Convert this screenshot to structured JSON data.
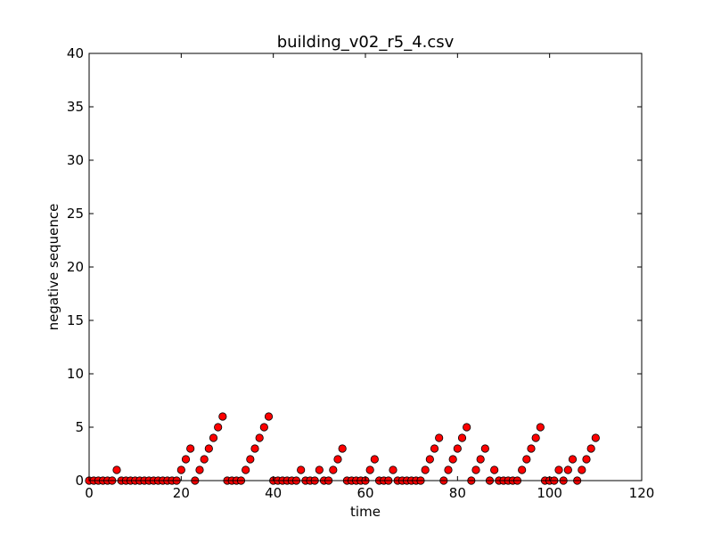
{
  "chart_data": {
    "type": "scatter",
    "title": "building_v02_r5_4.csv",
    "xlabel": "time",
    "ylabel": "negative sequence",
    "xlim": [
      0,
      120
    ],
    "ylim": [
      0,
      40
    ],
    "xticks": [
      0,
      20,
      40,
      60,
      80,
      100,
      120
    ],
    "yticks": [
      0,
      5,
      10,
      15,
      20,
      25,
      30,
      35,
      40
    ],
    "grid": false,
    "marker_color": "#ff0000",
    "marker_edge_color": "#000000",
    "series": [
      {
        "x": [
          0,
          1,
          2,
          3,
          4,
          5,
          6,
          7,
          8,
          9,
          10,
          11,
          12,
          13,
          14,
          15,
          16,
          17,
          18,
          19,
          20,
          21,
          22,
          23,
          24,
          25,
          26,
          27,
          28,
          29,
          30,
          31,
          32,
          33,
          34,
          35,
          36,
          37,
          38,
          39,
          40,
          41,
          42,
          43,
          44,
          45,
          46,
          47,
          48,
          49,
          50,
          51,
          52,
          53,
          54,
          55,
          56,
          57,
          58,
          59,
          60,
          61,
          62,
          63,
          64,
          65,
          66,
          67,
          68,
          69,
          70,
          71,
          72,
          73,
          74,
          75,
          76,
          77,
          78,
          79,
          80,
          81,
          82,
          83,
          84,
          85,
          86,
          87,
          88,
          89,
          90,
          91,
          92,
          93,
          94,
          95,
          96,
          97,
          98,
          99,
          100,
          101,
          102,
          103,
          104,
          105,
          106,
          107,
          108,
          109,
          110
        ],
        "y": [
          0,
          0,
          0,
          0,
          0,
          0,
          1,
          0,
          0,
          0,
          0,
          0,
          0,
          0,
          0,
          0,
          0,
          0,
          0,
          0,
          1,
          2,
          3,
          0,
          1,
          2,
          3,
          4,
          5,
          6,
          0,
          0,
          0,
          0,
          1,
          2,
          3,
          4,
          5,
          6,
          0,
          0,
          0,
          0,
          0,
          0,
          1,
          0,
          0,
          0,
          1,
          0,
          0,
          1,
          2,
          3,
          0,
          0,
          0,
          0,
          0,
          1,
          2,
          0,
          0,
          0,
          1,
          0,
          0,
          0,
          0,
          0,
          0,
          1,
          2,
          3,
          4,
          0,
          1,
          2,
          3,
          4,
          5,
          0,
          1,
          2,
          3,
          0,
          1,
          0,
          0,
          0,
          0,
          0,
          1,
          2,
          3,
          4,
          5,
          0,
          0,
          0,
          1,
          0,
          1,
          2,
          0,
          1,
          2,
          3,
          4
        ]
      }
    ]
  }
}
